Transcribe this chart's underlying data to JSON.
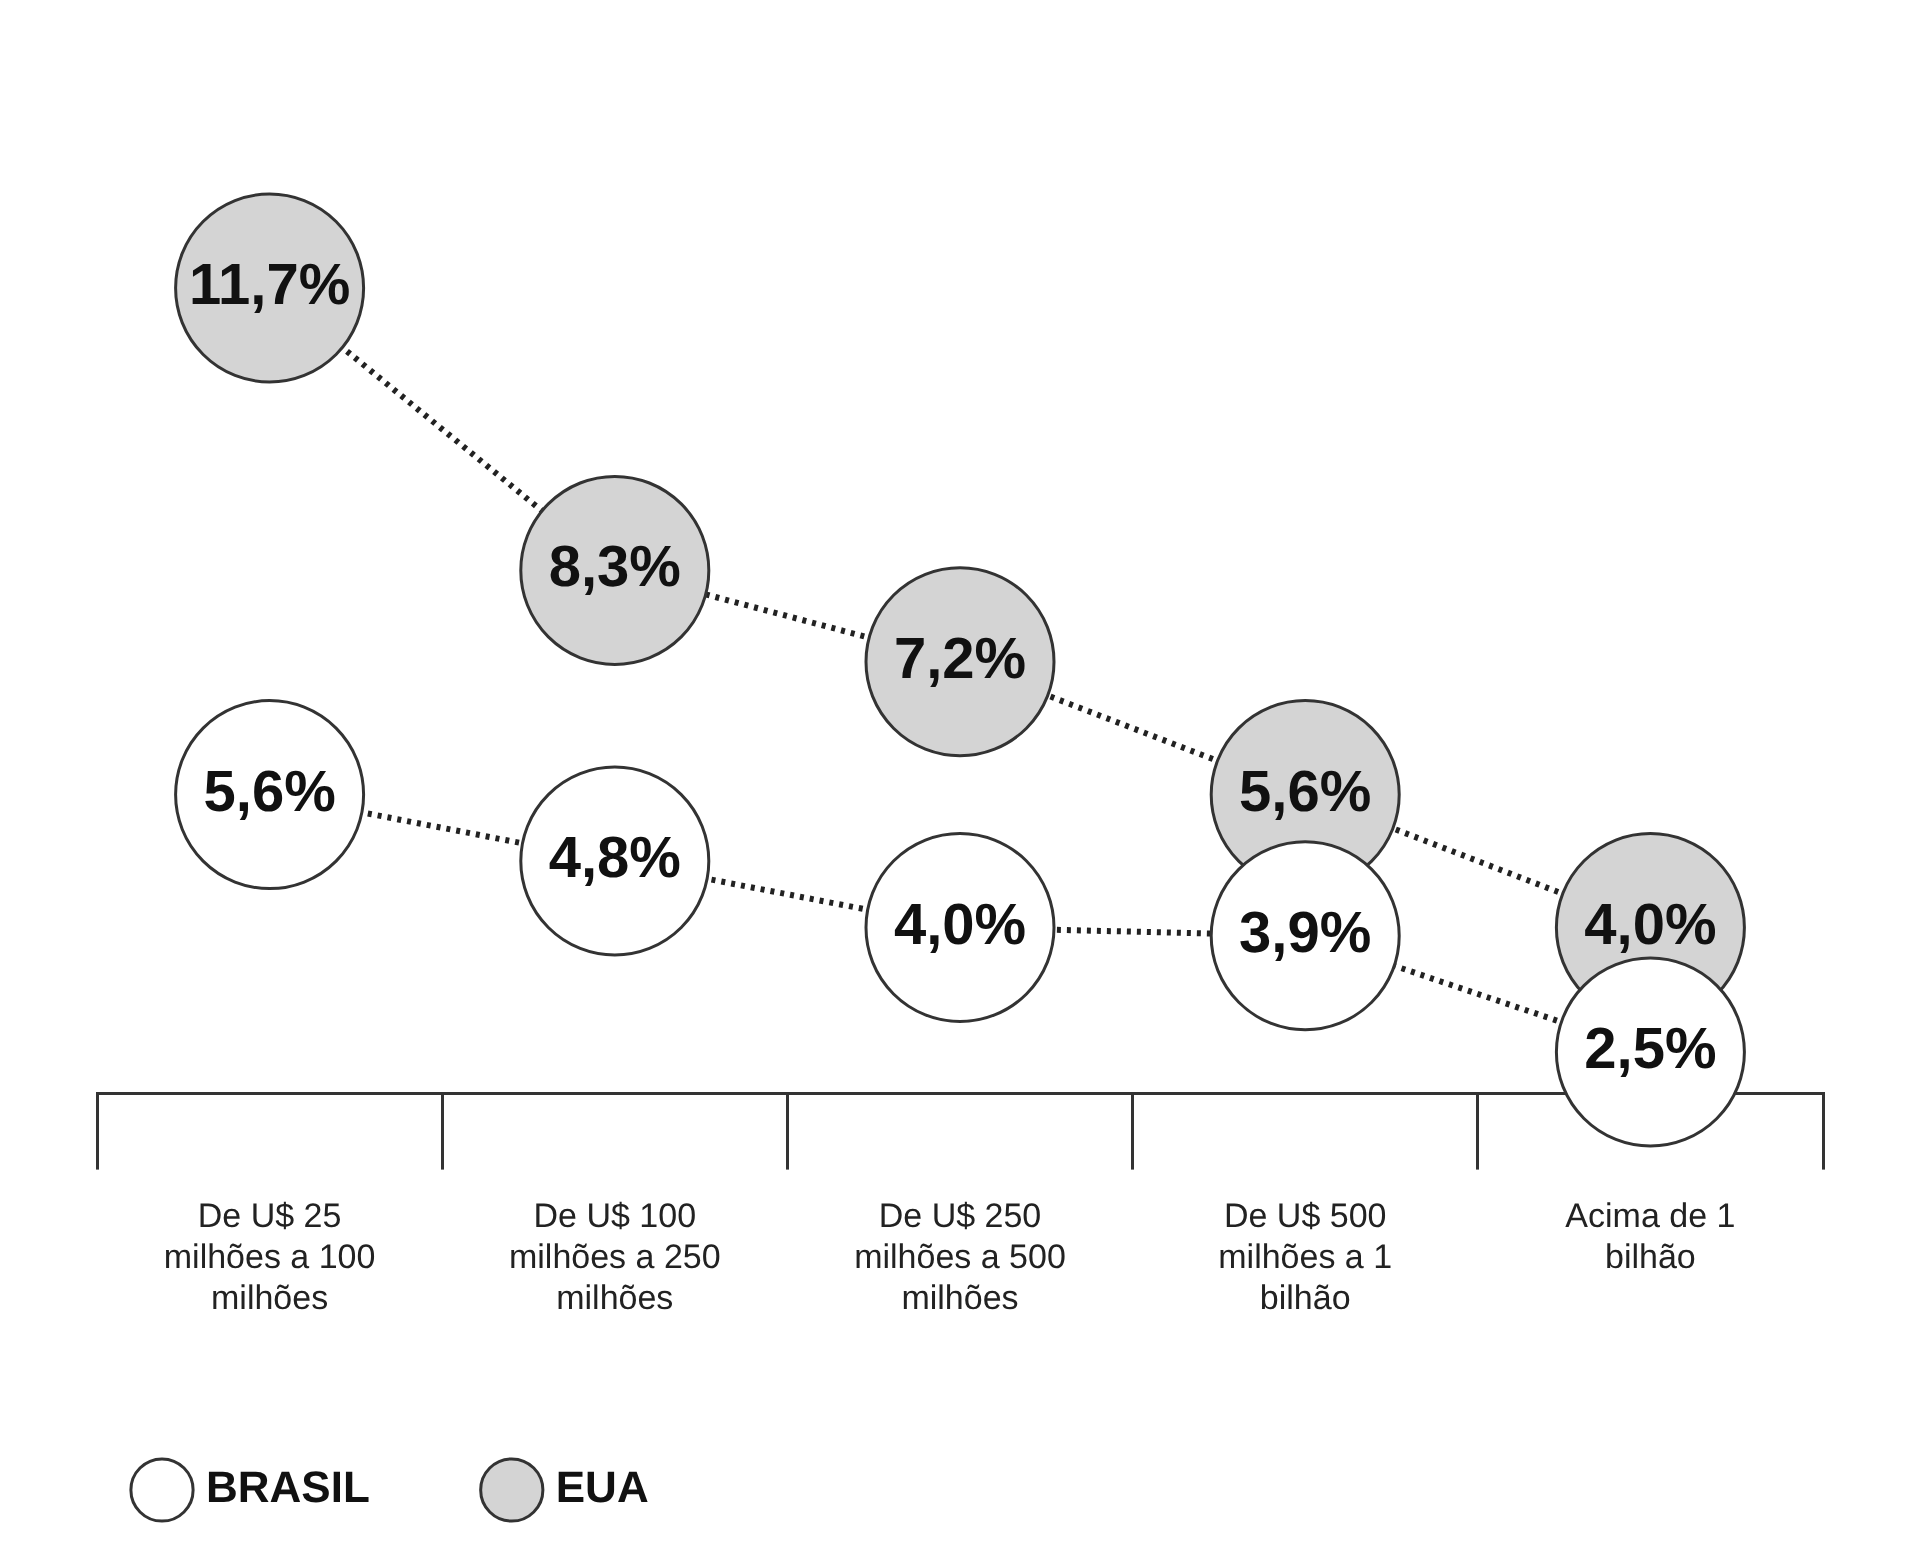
{
  "chart_data": {
    "type": "scatter",
    "categories": [
      "De U$ 25 milhões a 100 milhões",
      "De U$ 100 milhões a 250 milhões",
      "De U$ 250 milhões a 500 milhões",
      "De U$ 500 milhões a 1 bilhão",
      "Acima de 1 bilhão"
    ],
    "series": [
      {
        "name": "BRASIL",
        "color": "#ffffff",
        "values": [
          5.6,
          4.8,
          4.0,
          3.9,
          2.5
        ],
        "value_labels": [
          "5,6%",
          "4,8%",
          "4,0%",
          "3,9%",
          "2,5%"
        ]
      },
      {
        "name": "EUA",
        "color": "#d4d4d4",
        "values": [
          11.7,
          8.3,
          7.2,
          5.6,
          4.0
        ],
        "value_labels": [
          "11,7%",
          "8,3%",
          "7,2%",
          "5,6%",
          "4,0%"
        ]
      }
    ],
    "tick_labels": "x",
    "grid": false,
    "legend": "bottom left",
    "marker": "circle",
    "line_style": "dotted"
  }
}
